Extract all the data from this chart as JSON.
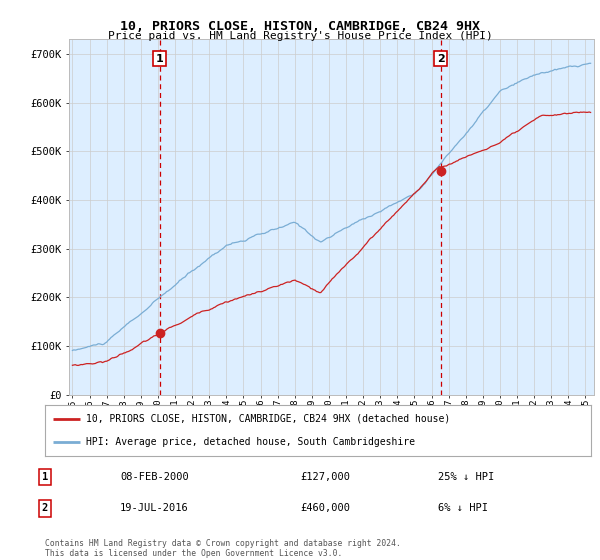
{
  "title": "10, PRIORS CLOSE, HISTON, CAMBRIDGE, CB24 9HX",
  "subtitle": "Price paid vs. HM Land Registry's House Price Index (HPI)",
  "ylabel_ticks": [
    "£0",
    "£100K",
    "£200K",
    "£300K",
    "£400K",
    "£500K",
    "£600K",
    "£700K"
  ],
  "ytick_values": [
    0,
    100000,
    200000,
    300000,
    400000,
    500000,
    600000,
    700000
  ],
  "ylim": [
    0,
    730000
  ],
  "xlim_start": 1994.8,
  "xlim_end": 2025.5,
  "sale1_year": 2000.1,
  "sale1_price": 127000,
  "sale1_label": "1",
  "sale2_year": 2016.54,
  "sale2_price": 460000,
  "sale2_label": "2",
  "hpi_color": "#7aadd4",
  "price_color": "#cc2222",
  "grid_color": "#cccccc",
  "vline_color": "#cc0000",
  "background_color": "#ffffff",
  "plot_bg_color": "#ddeeff",
  "legend_line1": "10, PRIORS CLOSE, HISTON, CAMBRIDGE, CB24 9HX (detached house)",
  "legend_line2": "HPI: Average price, detached house, South Cambridgeshire",
  "table_row1": [
    "1",
    "08-FEB-2000",
    "£127,000",
    "25% ↓ HPI"
  ],
  "table_row2": [
    "2",
    "19-JUL-2016",
    "£460,000",
    "6% ↓ HPI"
  ],
  "footer": "Contains HM Land Registry data © Crown copyright and database right 2024.\nThis data is licensed under the Open Government Licence v3.0.",
  "xtick_years": [
    1995,
    1996,
    1997,
    1998,
    1999,
    2000,
    2001,
    2002,
    2003,
    2004,
    2005,
    2006,
    2007,
    2008,
    2009,
    2010,
    2011,
    2012,
    2013,
    2014,
    2015,
    2016,
    2017,
    2018,
    2019,
    2020,
    2021,
    2022,
    2023,
    2024,
    2025
  ]
}
